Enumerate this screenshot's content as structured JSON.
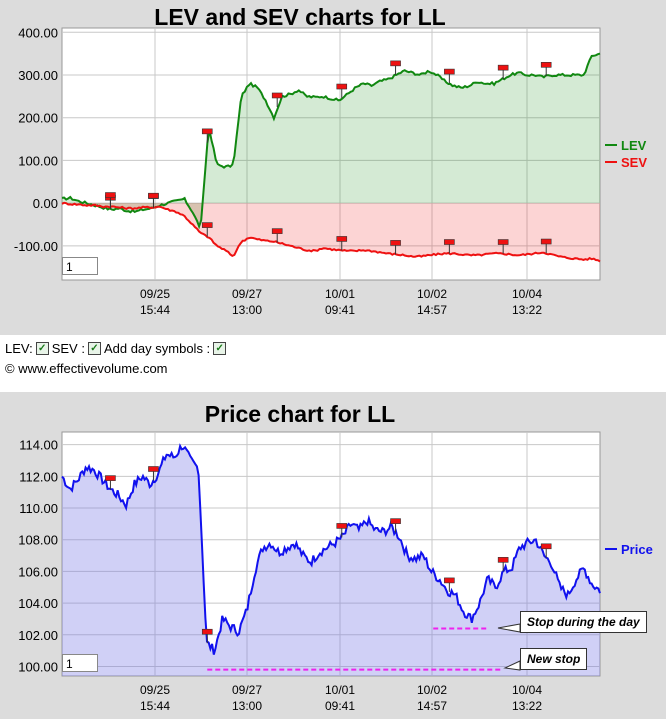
{
  "chart_data": [
    {
      "type": "line",
      "title": "LEV and SEV charts for LL",
      "x_ticks": [
        {
          "date": "09/25",
          "time": "15:44"
        },
        {
          "date": "09/27",
          "time": "13:00"
        },
        {
          "date": "10/01",
          "time": "09:41"
        },
        {
          "date": "10/02",
          "time": "14:57"
        },
        {
          "date": "10/04",
          "time": "13:22"
        }
      ],
      "y_ticks": [
        "400.00",
        "300.00",
        "200.00",
        "100.00",
        "0.00",
        "-100.00"
      ],
      "ylim": [
        -180,
        410
      ],
      "grid": true,
      "legend_position": "right",
      "zoom_value": "1",
      "series": [
        {
          "name": "LEV",
          "color": "#118811",
          "values": [
            10,
            12,
            5,
            0,
            -5,
            -10,
            -15,
            -12,
            -18,
            -20,
            -15,
            -12,
            -5,
            0,
            5,
            10,
            -20,
            -60,
            180,
            90,
            85,
            88,
            250,
            280,
            270,
            240,
            200,
            250,
            255,
            265,
            250,
            248,
            250,
            245,
            240,
            255,
            270,
            280,
            275,
            285,
            290,
            300,
            310,
            305,
            300,
            310,
            300,
            285,
            275,
            270,
            275,
            285,
            280,
            280,
            290,
            300,
            305,
            300,
            300,
            295,
            300,
            300,
            300,
            300,
            300,
            345,
            350
          ]
        },
        {
          "name": "SEV",
          "color": "#ee1111",
          "values": [
            0,
            -2,
            -3,
            -5,
            -5,
            -8,
            -8,
            -10,
            -12,
            -12,
            -10,
            -10,
            -8,
            -15,
            -20,
            -30,
            -50,
            -70,
            -80,
            -100,
            -110,
            -125,
            -90,
            -80,
            -85,
            -88,
            -90,
            -95,
            -100,
            -105,
            -110,
            -112,
            -105,
            -108,
            -110,
            -112,
            -112,
            -110,
            -112,
            -115,
            -118,
            -120,
            -122,
            -125,
            -125,
            -122,
            -120,
            -118,
            -118,
            -120,
            -122,
            -122,
            -120,
            -118,
            -118,
            -120,
            -122,
            -120,
            -118,
            -115,
            -120,
            -125,
            -128,
            -130,
            -132,
            -130,
            -135
          ]
        }
      ],
      "day_symbol_positions": [
        0.09,
        0.17,
        0.27,
        0.4,
        0.52,
        0.62,
        0.72,
        0.82,
        0.9
      ]
    },
    {
      "type": "area",
      "title": "Price chart for LL",
      "x_ticks": [
        {
          "date": "09/25",
          "time": "15:44"
        },
        {
          "date": "09/27",
          "time": "13:00"
        },
        {
          "date": "10/01",
          "time": "09:41"
        },
        {
          "date": "10/02",
          "time": "14:57"
        },
        {
          "date": "10/04",
          "time": "13:22"
        }
      ],
      "y_ticks": [
        "114.00",
        "112.00",
        "110.00",
        "108.00",
        "106.00",
        "104.00",
        "102.00",
        "100.00"
      ],
      "ylim": [
        99.4,
        114.8
      ],
      "grid": true,
      "legend_position": "right",
      "zoom_value": "1",
      "series": [
        {
          "name": "Price",
          "color": "#1111ee",
          "values": [
            112.0,
            111.2,
            111.8,
            112.6,
            112.4,
            111.8,
            111.2,
            110.8,
            110.2,
            111.5,
            112.0,
            111.5,
            112.2,
            113.4,
            113.2,
            114.0,
            113.0,
            112.5,
            101.5,
            101.0,
            103.0,
            102.5,
            102.2,
            103.5,
            106.0,
            107.5,
            107.8,
            107.2,
            107.5,
            107.8,
            107.0,
            106.6,
            107.2,
            107.5,
            107.8,
            108.2,
            109.0,
            108.6,
            109.2,
            108.6,
            108.5,
            108.8,
            108.2,
            107.0,
            106.8,
            107.0,
            106.0,
            105.5,
            104.8,
            104.5,
            103.5,
            103.0,
            104.0,
            105.5,
            105.0,
            106.0,
            106.2,
            107.5,
            107.8,
            108.0,
            107.0,
            106.5,
            105.0,
            104.5,
            105.5,
            106.2,
            105.2,
            104.8
          ]
        }
      ],
      "day_symbol_positions": [
        0.09,
        0.17,
        0.27,
        0.52,
        0.62,
        0.72,
        0.82,
        0.9
      ],
      "stop_lines": [
        {
          "label": "Stop during the day",
          "value": 102.4
        },
        {
          "label": "New stop",
          "value": 99.8
        }
      ]
    }
  ],
  "controls": {
    "lev_label": "LEV:",
    "sev_label": "SEV :",
    "day_symbols_label": "Add day symbols :",
    "check_mark": "✓"
  },
  "copyright": "© www.effectivevolume.com"
}
